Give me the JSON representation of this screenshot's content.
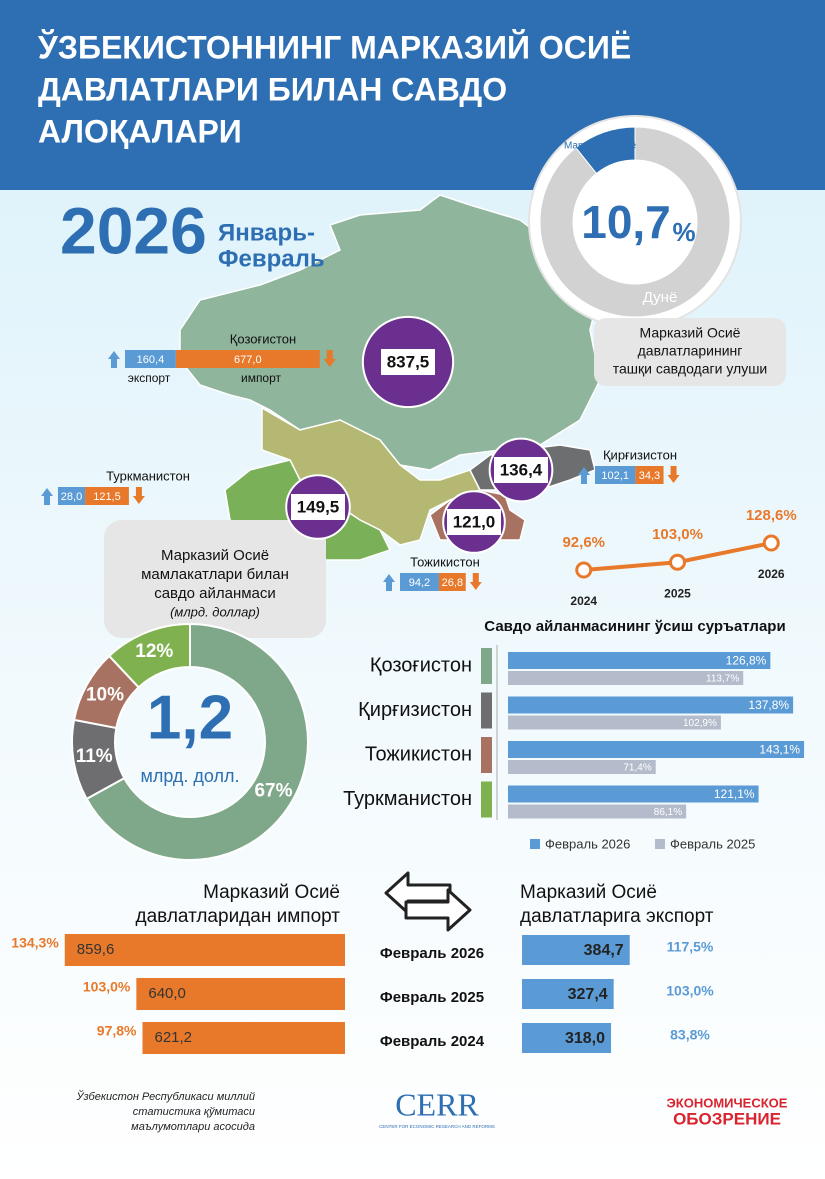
{
  "title": [
    "ЎЗБЕКИСТОННИНГ МАРКАЗИЙ ОСИЁ",
    "ДАВЛАТЛАРИ БИЛАН САВДО",
    "АЛОҚАЛАРИ"
  ],
  "year": "2026",
  "period": [
    "Январь-",
    "Февраль"
  ],
  "chart_data": [
    {
      "type": "donut",
      "categories": [
        "Марказий Осиё",
        "Дунё"
      ],
      "values": [
        10.7,
        89.3
      ],
      "value_labels": [
        "10,7",
        null
      ],
      "unit": "%",
      "colors": [
        "#2d6fb2",
        "#d2d2d2"
      ],
      "caption": [
        "Марказий Осиё",
        "давлатларининг",
        "ташқи савдодаги улуши"
      ]
    },
    {
      "type": "bubble-map",
      "categories": [
        "Қозоғистон",
        "Туркманистон",
        "Қирғизистон",
        "Тожикистон"
      ],
      "values": [
        837.5,
        149.5,
        136.4,
        121.0
      ],
      "value_labels": [
        "837,5",
        "149,5",
        "136,4",
        "121,0"
      ],
      "color": "#6a2f8f",
      "series": [
        {
          "name": "экспорт",
          "color": "#5b9bd5",
          "values": [
            160.4,
            28.0,
            102.1,
            94.2
          ],
          "value_labels": [
            "160,4",
            "28,0",
            "102,1",
            "94,2"
          ]
        },
        {
          "name": "импорт",
          "color": "#e8792b",
          "values": [
            677.0,
            121.5,
            34.3,
            26.8
          ],
          "value_labels": [
            "677,0",
            "121,5",
            "34,3",
            "26,8"
          ]
        }
      ]
    },
    {
      "type": "line",
      "x": [
        2024,
        2025,
        2026
      ],
      "values": [
        92.6,
        103.0,
        128.6
      ],
      "value_labels": [
        "92,6%",
        "103,0%",
        "128,6%"
      ],
      "xlim": [
        2023.8,
        2026.2
      ],
      "ylim": [
        80,
        140
      ],
      "color": "#e8792b"
    },
    {
      "type": "hbar",
      "title": "Савдо айланмасининг ўсиш суръатлари",
      "categories": [
        "Қозоғистон",
        "Қирғизистон",
        "Тожикистон",
        "Туркманистон"
      ],
      "category_colors": [
        "#7fa88a",
        "#6e6e70",
        "#a87262",
        "#7fb24f"
      ],
      "xlim": [
        0,
        145
      ],
      "series": [
        {
          "name": "Февраль 2026",
          "color": "#5b9bd5",
          "values": [
            126.8,
            137.8,
            143.1,
            121.1
          ],
          "value_labels": [
            "126,8%",
            "137,8%",
            "143,1%",
            "121,1%"
          ]
        },
        {
          "name": "Февраль 2025",
          "color": "#b4bccb",
          "values": [
            113.7,
            102.9,
            71.4,
            86.1
          ],
          "value_labels": [
            "113,7%",
            "102,9%",
            "71,4%",
            "86,1%"
          ]
        }
      ]
    },
    {
      "type": "donut",
      "values": [
        67,
        11,
        10,
        12
      ],
      "value_labels": [
        "67%",
        "11%",
        "10%",
        "12%"
      ],
      "colors": [
        "#7fa88a",
        "#6e6e70",
        "#a87262",
        "#7fb24f"
      ],
      "total_label": "1,2",
      "unit": "млрд. долл.",
      "caption": [
        "Марказий Осиё",
        "мамлакатлари билан",
        "савдо айланмаси"
      ],
      "caption_note": "(млрд. доллар)"
    },
    {
      "type": "mirror-bar",
      "categories": [
        "Февраль 2026",
        "Февраль 2025",
        "Февраль 2024"
      ],
      "xlim": [
        0,
        1000
      ],
      "series": [
        {
          "name": [
            "Марказий Осиё",
            "давлатларидан импорт"
          ],
          "color": "#e8792b",
          "values": [
            859.6,
            640.0,
            621.2
          ],
          "value_labels": [
            "859,6",
            "640,0",
            "621,2"
          ],
          "growth": [
            134.3,
            103.0,
            97.8
          ],
          "growth_labels": [
            "134,3%",
            "103,0%",
            "97,8%"
          ]
        },
        {
          "name": [
            "Марказий Осиё",
            "давлатларига экспорт"
          ],
          "color": "#5b9bd5",
          "values": [
            384.7,
            327.4,
            318.0
          ],
          "value_labels": [
            "384,7",
            "327,4",
            "318,0"
          ],
          "growth": [
            117.5,
            103.0,
            83.8
          ],
          "growth_labels": [
            "117,5%",
            "103,0%",
            "83,8%"
          ]
        }
      ]
    }
  ],
  "footer": {
    "source": [
      "Ўзбекистон Республикаси миллий",
      "статистика қўмитаси",
      "маълумотлари асосида"
    ],
    "cerr": "CERR",
    "cerr_sub": "CENTER FOR ECONOMIC RESEARCH AND REFORMS",
    "eo": [
      "ЭКОНОМИЧЕСКОЕ",
      "ОБОЗРЕНИЕ"
    ]
  }
}
